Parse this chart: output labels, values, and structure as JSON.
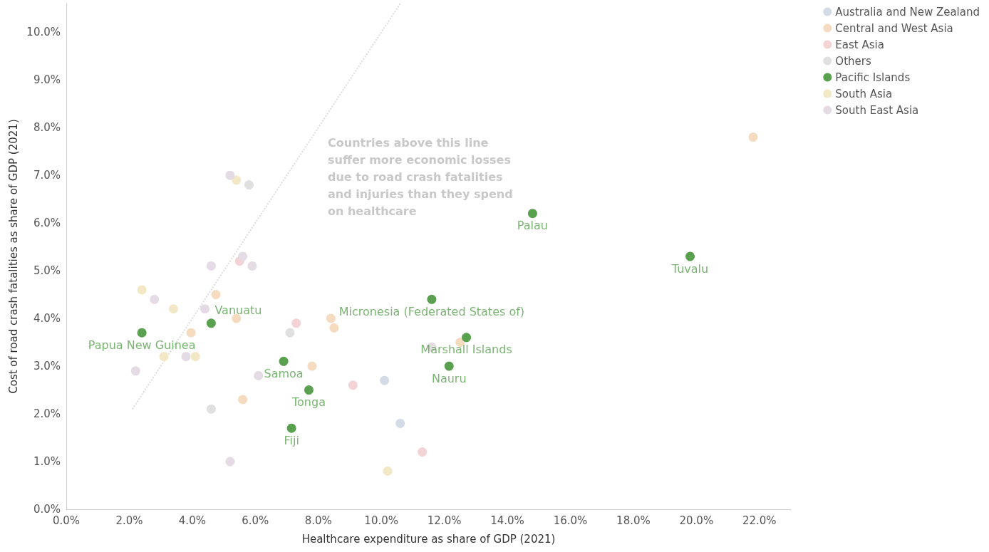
{
  "chart_data": {
    "type": "scatter",
    "xlabel": "Healthcare expenditure as share of GDP (2021)",
    "ylabel": "Cost of road crash fatalities as share of GDP (2021)",
    "xlim": [
      0,
      23
    ],
    "ylim": [
      0,
      10.6
    ],
    "xticks": [
      {
        "value": 0,
        "label": "0.0%"
      },
      {
        "value": 2,
        "label": "2.0%"
      },
      {
        "value": 4,
        "label": "4.0%"
      },
      {
        "value": 6,
        "label": "6.0%"
      },
      {
        "value": 8,
        "label": "8.0%"
      },
      {
        "value": 10,
        "label": "10.0%"
      },
      {
        "value": 12,
        "label": "12.0%"
      },
      {
        "value": 14,
        "label": "14.0%"
      },
      {
        "value": 16,
        "label": "16.0%"
      },
      {
        "value": 18,
        "label": "18.0%"
      },
      {
        "value": 20,
        "label": "20.0%"
      },
      {
        "value": 22,
        "label": "22.0%"
      }
    ],
    "yticks": [
      {
        "value": 0,
        "label": "0.0%"
      },
      {
        "value": 1,
        "label": "1.0%"
      },
      {
        "value": 2,
        "label": "2.0%"
      },
      {
        "value": 3,
        "label": "3.0%"
      },
      {
        "value": 4,
        "label": "4.0%"
      },
      {
        "value": 5,
        "label": "5.0%"
      },
      {
        "value": 6,
        "label": "6.0%"
      },
      {
        "value": 7,
        "label": "7.0%"
      },
      {
        "value": 8,
        "label": "8.0%"
      },
      {
        "value": 9,
        "label": "9.0%"
      },
      {
        "value": 10,
        "label": "10.0%"
      }
    ],
    "grid": false,
    "legend": "right",
    "marker": "circle",
    "series": [
      {
        "name": "Australia and New Zealand",
        "color": "#d3dce6",
        "x": [
          10.1,
          10.6
        ],
        "values": [
          2.7,
          1.8
        ]
      },
      {
        "name": "Central and West Asia",
        "color": "#f5dcc0",
        "x": [
          21.8,
          4.75,
          3.96,
          5.4,
          8.4,
          8.5,
          7.8,
          5.6,
          12.5
        ],
        "values": [
          7.8,
          4.5,
          3.7,
          4.0,
          4.0,
          3.8,
          3.0,
          2.3,
          3.5
        ]
      },
      {
        "name": "East Asia",
        "color": "#f3d3d6",
        "x": [
          5.5,
          7.3,
          9.1,
          11.3
        ],
        "values": [
          5.2,
          3.9,
          2.6,
          1.2
        ]
      },
      {
        "name": "Others",
        "color": "#e0e0e0",
        "x": [
          5.8,
          7.1,
          4.6
        ],
        "values": [
          6.8,
          3.7,
          2.1
        ]
      },
      {
        "name": "Pacific Islands",
        "color": "#59a14f",
        "x": [
          14.8,
          19.8,
          11.6,
          12.7,
          12.15,
          4.6,
          2.4,
          6.9,
          7.7,
          7.15
        ],
        "values": [
          6.2,
          5.3,
          4.4,
          3.6,
          3.0,
          3.9,
          3.7,
          3.1,
          2.5,
          1.7
        ]
      },
      {
        "name": "South Asia",
        "color": "#f3e8c6",
        "x": [
          5.4,
          2.4,
          3.4,
          3.1,
          4.1,
          10.2
        ],
        "values": [
          6.9,
          4.6,
          4.2,
          3.2,
          3.2,
          0.8
        ]
      },
      {
        "name": "South East Asia",
        "color": "#e5dbe5",
        "x": [
          5.2,
          5.6,
          4.6,
          5.9,
          2.8,
          4.4,
          3.8,
          6.1,
          2.2,
          5.2,
          11.6
        ],
        "values": [
          7.0,
          5.3,
          5.1,
          5.1,
          4.4,
          4.2,
          3.2,
          2.8,
          2.9,
          1.0,
          3.4
        ]
      },
      {
        "type": "line",
        "color": "#dddddd",
        "line_style": "dotted",
        "marker": "none",
        "x": [
          2.1,
          10.6
        ],
        "values": [
          2.1,
          10.6
        ]
      }
    ],
    "annotations": [
      "Countries above this line suffer more economic losses due to road crash fatalities and injuries than they spend on healthcare",
      {
        "text": "Palau",
        "x": 14.8,
        "y": 6.2
      },
      {
        "text": "Tuvalu",
        "x": 19.8,
        "y": 5.3
      },
      {
        "text": "Micronesia (Federated States of)",
        "x": 11.6,
        "y": 4.4
      },
      {
        "text": "Marshall Islands",
        "x": 12.7,
        "y": 3.6
      },
      {
        "text": "Nauru",
        "x": 12.15,
        "y": 3.0
      },
      {
        "text": "Vanuatu",
        "x": 4.6,
        "y": 3.9
      },
      {
        "text": "Papua New Guinea",
        "x": 2.4,
        "y": 3.7
      },
      {
        "text": "Samoa",
        "x": 6.9,
        "y": 3.1
      },
      {
        "text": "Tonga",
        "x": 7.7,
        "y": 2.5
      },
      {
        "text": "Fiji",
        "x": 7.15,
        "y": 1.7
      }
    ]
  }
}
